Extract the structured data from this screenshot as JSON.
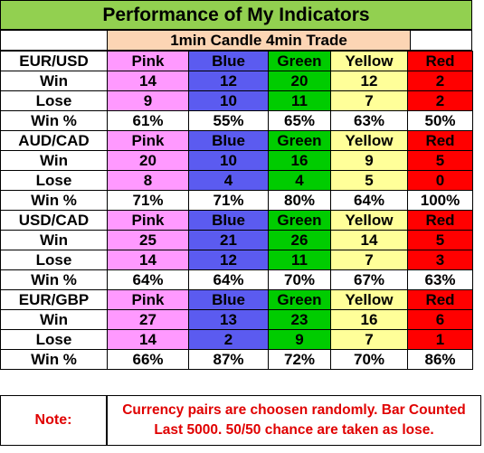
{
  "title": "Performance of My Indicators",
  "subtitle": "1min Candle 4min Trade",
  "colors": {
    "title_bg": "#92d050",
    "subtitle_bg": "#fcd5b4",
    "pink": "#ff99ff",
    "blue": "#5b5bf0",
    "green": "#00cc00",
    "yellow": "#ffff99",
    "red": "#ff0000",
    "note_text": "#e00000"
  },
  "row_labels": {
    "win": "Win",
    "lose": "Lose",
    "win_pct": "Win %"
  },
  "indicators": [
    "Pink",
    "Blue",
    "Green",
    "Yellow",
    "Red"
  ],
  "pairs": [
    {
      "name": "EUR/USD",
      "win": [
        "14",
        "12",
        "20",
        "12",
        "2"
      ],
      "lose": [
        "9",
        "10",
        "11",
        "7",
        "2"
      ],
      "win_pct": [
        "61%",
        "55%",
        "65%",
        "63%",
        "50%"
      ]
    },
    {
      "name": "AUD/CAD",
      "win": [
        "20",
        "10",
        "16",
        "9",
        "5"
      ],
      "lose": [
        "8",
        "4",
        "4",
        "5",
        "0"
      ],
      "win_pct": [
        "71%",
        "71%",
        "80%",
        "64%",
        "100%"
      ]
    },
    {
      "name": "USD/CAD",
      "win": [
        "25",
        "21",
        "26",
        "14",
        "5"
      ],
      "lose": [
        "14",
        "12",
        "11",
        "7",
        "3"
      ],
      "win_pct": [
        "64%",
        "64%",
        "70%",
        "67%",
        "63%"
      ]
    },
    {
      "name": "EUR/GBP",
      "win": [
        "27",
        "13",
        "23",
        "16",
        "6"
      ],
      "lose": [
        "14",
        "2",
        "9",
        "7",
        "1"
      ],
      "win_pct": [
        "66%",
        "87%",
        "72%",
        "70%",
        "86%"
      ]
    }
  ],
  "note": {
    "label": "Note:",
    "text": "Currency pairs are choosen randomly. Bar Counted Last 5000. 50/50 chance are taken as lose."
  }
}
